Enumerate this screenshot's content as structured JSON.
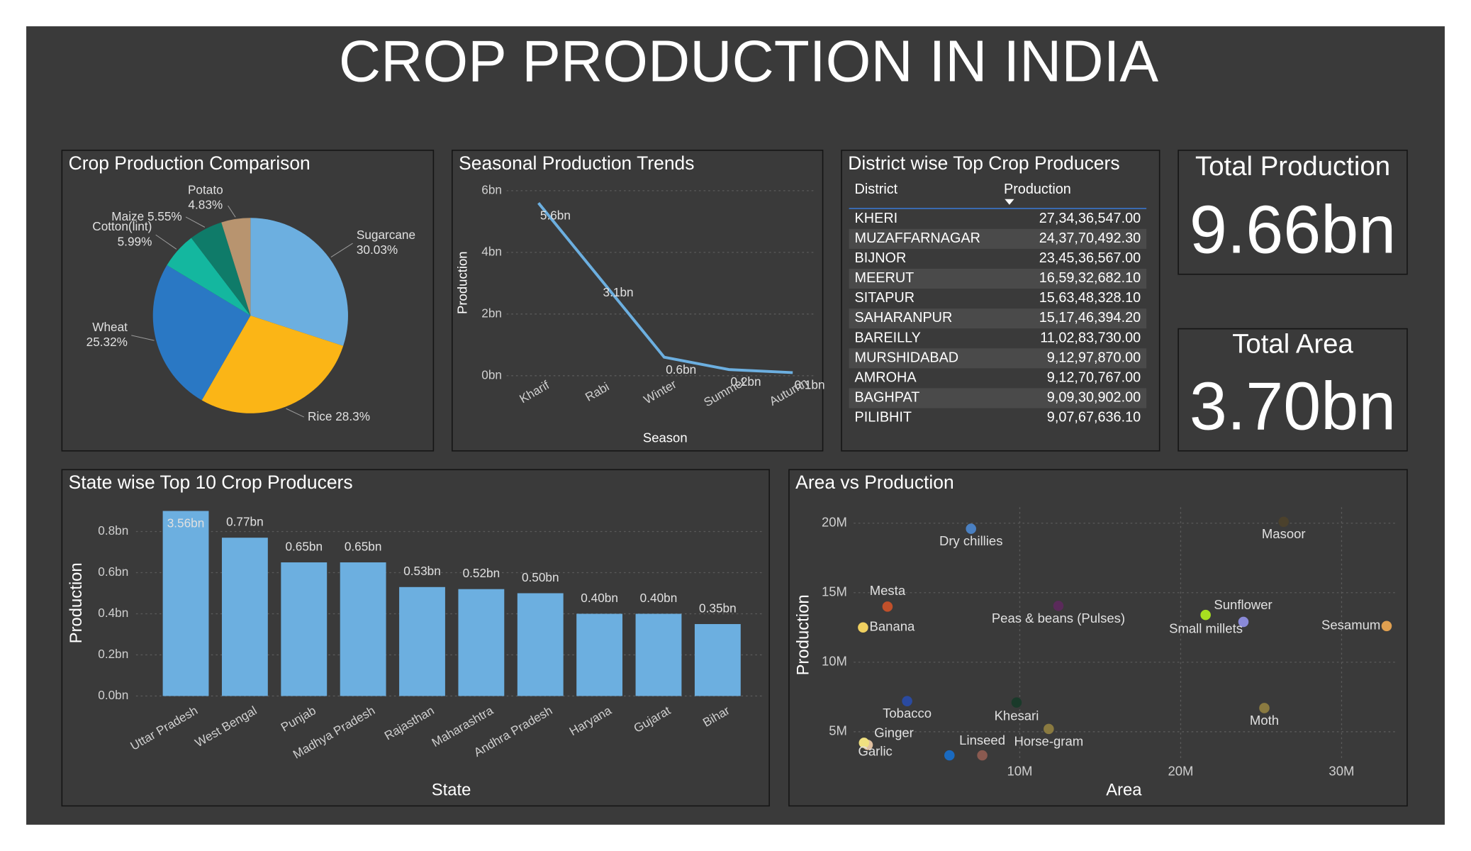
{
  "title": "CROP PRODUCTION IN INDIA",
  "chart_data": [
    {
      "type": "pie",
      "title": "Crop Production Comparison",
      "categories": [
        "Sugarcane",
        "Rice",
        "Wheat",
        "Cotton(lint)",
        "Maize",
        "Potato"
      ],
      "values": [
        30.03,
        28.3,
        25.32,
        5.99,
        5.55,
        4.83
      ],
      "value_labels": [
        "30.03%",
        "28.3%",
        "25.32%",
        "5.99%",
        "5.55%",
        "4.83%"
      ],
      "colors": [
        "#6cafe0",
        "#fbb516",
        "#2a78c4",
        "#14b79f",
        "#0f7b69",
        "#b8946f"
      ]
    },
    {
      "type": "line",
      "title": "Seasonal Production Trends",
      "categories": [
        "Kharif",
        "Rabi",
        "Winter",
        "Summer",
        "Autumn"
      ],
      "values": [
        5.6,
        3.1,
        0.6,
        0.2,
        0.1
      ],
      "value_labels": [
        "5.6bn",
        "3.1bn",
        "0.6bn",
        "0.2bn",
        "0.1bn"
      ],
      "color": "#6cafe0",
      "xlabel": "Season",
      "ylabel": "Production",
      "ylim": [
        0,
        6
      ],
      "yticks": [
        {
          "value": 0,
          "label": "0bn"
        },
        {
          "value": 2,
          "label": "2bn"
        },
        {
          "value": 4,
          "label": "4bn"
        },
        {
          "value": 6,
          "label": "6bn"
        }
      ],
      "grid": true
    },
    {
      "type": "bar",
      "title": "State wise Top 10 Crop Producers",
      "categories": [
        "Uttar Pradesh",
        "West Bengal",
        "Punjab",
        "Madhya Pradesh",
        "Rajasthan",
        "Maharashtra",
        "Andhra Pradesh",
        "Haryana",
        "Gujarat",
        "Bihar"
      ],
      "values": [
        3.56,
        0.77,
        0.65,
        0.65,
        0.53,
        0.52,
        0.5,
        0.4,
        0.4,
        0.35
      ],
      "value_labels": [
        "3.56bn",
        "0.77bn",
        "0.65bn",
        "0.65bn",
        "0.53bn",
        "0.52bn",
        "0.50bn",
        "0.40bn",
        "0.40bn",
        "0.35bn"
      ],
      "color": "#6cafe0",
      "xlabel": "State",
      "ylabel": "Production",
      "ylim": [
        0,
        0.9
      ],
      "yticks": [
        {
          "value": 0,
          "label": "0.0bn"
        },
        {
          "value": 0.2,
          "label": "0.2bn"
        },
        {
          "value": 0.4,
          "label": "0.4bn"
        },
        {
          "value": 0.6,
          "label": "0.6bn"
        },
        {
          "value": 0.8,
          "label": "0.8bn"
        }
      ],
      "grid": true
    },
    {
      "type": "scatter",
      "title": "Area vs Production",
      "labels": [
        "Dry chillies",
        "Masoor",
        "Mesta",
        "Banana",
        "Peas & beans (Pulses)",
        "Sunflower",
        "Small millets",
        "Sesamum",
        "Tobacco",
        "Khesari",
        "Moth",
        "Horse-gram",
        "Ginger",
        "Garlic",
        null,
        "Linseed"
      ],
      "x": [
        6970000,
        26400000,
        1780000,
        260000,
        12400000,
        21550000,
        23900000,
        32800000,
        3000000,
        9800000,
        25200000,
        11800000,
        550000,
        320000,
        5630000,
        7670000
      ],
      "values": [
        19600000,
        20100000,
        14000000,
        12500000,
        14050000,
        13400000,
        12900000,
        12600000,
        7200000,
        7100000,
        6700000,
        5200000,
        4050000,
        4200000,
        3300000,
        3300000
      ],
      "colors": [
        "#4a80c2",
        "#4b412c",
        "#c0502a",
        "#f0d060",
        "#5a2a5a",
        "#a8e020",
        "#8a8ad8",
        "#e0a050",
        "#2a4aa0",
        "#1a3a2a",
        "#8a7a40",
        "#8a7a40",
        "#e0c0a0",
        "#f0e080",
        "#1a6ac0",
        "#8a5a50"
      ],
      "xlabel": "Area",
      "ylabel": "Production",
      "xlim": [
        0,
        33000000
      ],
      "ylim": [
        3000000,
        21000000
      ],
      "xticks": [
        {
          "value": 10000000,
          "label": "10M"
        },
        {
          "value": 20000000,
          "label": "20M"
        },
        {
          "value": 30000000,
          "label": "30M"
        }
      ],
      "yticks": [
        {
          "value": 5000000,
          "label": "5M"
        },
        {
          "value": 10000000,
          "label": "10M"
        },
        {
          "value": 15000000,
          "label": "15M"
        },
        {
          "value": 20000000,
          "label": "20M"
        }
      ],
      "grid": true
    }
  ],
  "table": {
    "title": "District wise Top Crop Producers",
    "columns": [
      "District",
      "Production"
    ],
    "rows": [
      [
        "KHERI",
        "27,34,36,547.00"
      ],
      [
        "MUZAFFARNAGAR",
        "24,37,70,492.30"
      ],
      [
        "BIJNOR",
        "23,45,36,567.00"
      ],
      [
        "MEERUT",
        "16,59,32,682.10"
      ],
      [
        "SITAPUR",
        "15,63,48,328.10"
      ],
      [
        "SAHARANPUR",
        "15,17,46,394.20"
      ],
      [
        "BAREILLY",
        "11,02,83,730.00"
      ],
      [
        "MURSHIDABAD",
        "9,12,97,870.00"
      ],
      [
        "AMROHA",
        "9,12,70,767.00"
      ],
      [
        "BAGHPAT",
        "9,09,30,902.00"
      ],
      [
        "PILIBHIT",
        "9,07,67,636.10"
      ]
    ]
  },
  "kpis": [
    {
      "label": "Total Production",
      "value": "9.66bn"
    },
    {
      "label": "Total Area",
      "value": "3.70bn"
    }
  ]
}
